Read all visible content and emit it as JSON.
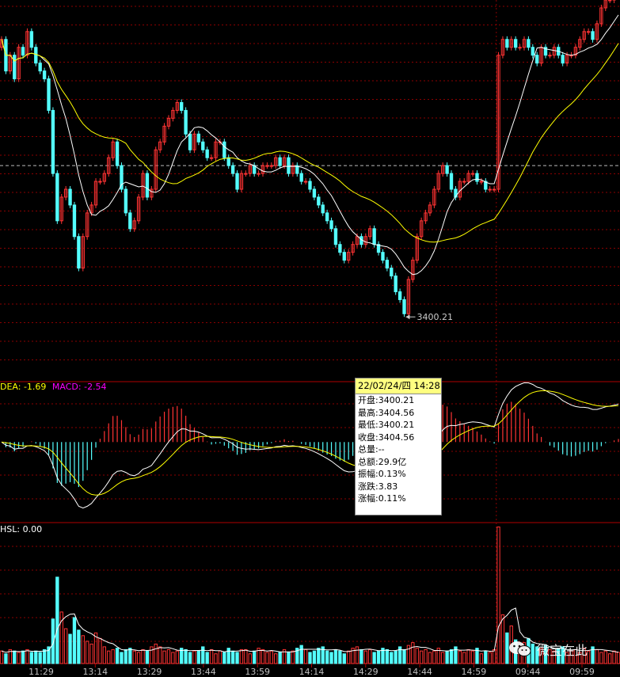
{
  "chart_data": {
    "type": "candlestick",
    "x_tick_labels": [
      "11:29",
      "13:14",
      "13:29",
      "13:44",
      "13:59",
      "14:14",
      "14:29",
      "14:44",
      "14:59",
      "09:44",
      "09:59"
    ],
    "price_ylim": [
      3392,
      3440
    ],
    "price_reference_line": 3419,
    "close_series": [
      3435,
      3431,
      3433,
      3430,
      3434,
      3433,
      3436,
      3434,
      3432,
      3431,
      3430,
      3426,
      3418,
      3412,
      3415,
      3416,
      3414,
      3410,
      3406,
      3410,
      3413,
      3414,
      3417,
      3417,
      3418,
      3420,
      3422,
      3419,
      3416,
      3413,
      3411,
      3412,
      3415,
      3418,
      3415,
      3416,
      3421,
      3422,
      3424,
      3425,
      3426,
      3427,
      3426,
      3423,
      3421,
      3423,
      3422,
      3421,
      3420,
      3420,
      3422,
      3422,
      3420,
      3419,
      3418,
      3416,
      3418,
      3418,
      3419,
      3418,
      3418,
      3419,
      3419,
      3419,
      3420,
      3419,
      3420,
      3418,
      3419,
      3418,
      3417,
      3417,
      3416,
      3415,
      3414,
      3413,
      3412,
      3411,
      3409,
      3408,
      3407,
      3408,
      3409,
      3410,
      3409,
      3410,
      3411,
      3409,
      3408,
      3407,
      3406,
      3405,
      3403,
      3402,
      3400.21,
      3404.56,
      3407,
      3410,
      3412,
      3413,
      3414,
      3416,
      3418,
      3419,
      3418,
      3416,
      3415,
      3417,
      3417,
      3418,
      3418,
      3417,
      3417,
      3416,
      3416,
      3416,
      3433,
      3435,
      3434,
      3435,
      3434,
      3434,
      3435,
      3434,
      3433,
      3432,
      3434,
      3433,
      3433,
      3434,
      3433,
      3432,
      3433,
      3433,
      3434,
      3435,
      3436,
      3436,
      3435,
      3437,
      3439,
      3440,
      3440,
      3441,
      3442
    ],
    "ma_short_label": "",
    "ma_long_label": "",
    "macd": {
      "labels": [
        {
          "text": "DEA: -1.69",
          "color": "#ffff00"
        },
        {
          "text": "MACD: -2.54",
          "color": "#ff00ff"
        }
      ],
      "ylim": [
        -8,
        6
      ],
      "dif_line_color": "#ffffff",
      "dea_line_color": "#ffff00",
      "hist_pos_color": "#ff3333",
      "hist_neg_color": "#54ffff"
    },
    "volume": {
      "label": "HSL: 0.00",
      "label_color": "#ffffff",
      "ylim": [
        0,
        100
      ],
      "values": [
        9,
        7,
        10,
        9,
        8,
        9,
        10,
        8,
        9,
        8,
        10,
        12,
        32,
        62,
        37,
        25,
        21,
        33,
        24,
        20,
        16,
        14,
        22,
        18,
        12,
        9,
        10,
        11,
        8,
        10,
        11,
        9,
        8,
        10,
        9,
        12,
        14,
        12,
        9,
        10,
        8,
        9,
        11,
        10,
        8,
        9,
        9,
        12,
        8,
        10,
        7,
        9,
        8,
        11,
        9,
        8,
        10,
        10,
        7,
        9,
        11,
        10,
        8,
        9,
        7,
        8,
        10,
        8,
        9,
        11,
        13,
        10,
        8,
        9,
        11,
        12,
        9,
        8,
        10,
        9,
        7,
        9,
        11,
        12,
        10,
        9,
        10,
        8,
        9,
        11,
        10,
        8,
        9,
        12,
        10,
        13,
        15,
        11,
        9,
        10,
        8,
        9,
        11,
        8,
        9,
        10,
        12,
        9,
        8,
        10,
        9,
        11,
        7,
        9,
        8,
        10,
        98,
        35,
        22,
        27,
        17,
        13,
        15,
        18,
        14,
        12,
        11,
        13,
        10,
        9,
        11,
        12,
        8,
        9,
        10,
        8,
        11,
        9,
        12,
        10,
        8,
        9,
        7,
        9,
        8
      ],
      "vol_ma_color": "#ffffff",
      "bar_up_color": "#ff3333",
      "bar_down_color": "#54ffff"
    },
    "last_price_annotation": "3400.21",
    "grid": "dotted-red",
    "colors": {
      "up": "#ff3333",
      "down": "#54ffff",
      "ma_short": "#ffffff",
      "ma_long": "#ffff00",
      "axis_text": "#c0c0c0"
    }
  },
  "tooltip": {
    "header": "22/02/24/四 14:28",
    "rows": [
      "开盘:3400.21",
      "最高:3404.56",
      "最低:3400.21",
      "收盘:3404.56",
      "总量:--",
      "总额:29.9亿",
      "振幅:0.13%",
      "涨跌:3.83",
      "涨幅:0.11%"
    ]
  },
  "watermark": {
    "text": "微宝在此"
  }
}
